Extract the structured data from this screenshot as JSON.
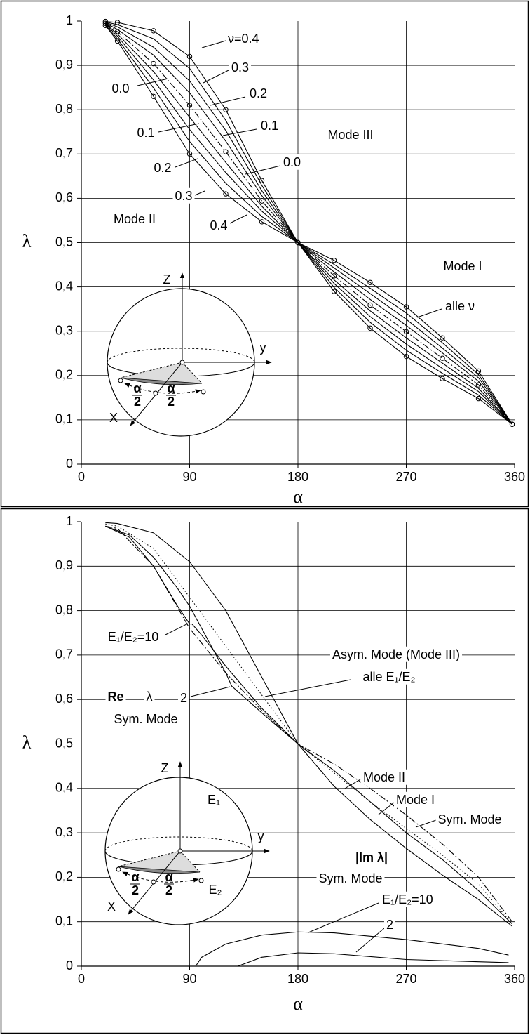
{
  "chart_data": [
    {
      "type": "line",
      "xlabel": "α",
      "ylabel": "λ",
      "xlim": [
        0,
        360
      ],
      "ylim": [
        0,
        1
      ],
      "xticks": [
        0,
        90,
        180,
        270,
        360
      ],
      "yticks": [
        0,
        {
          "value": 0.1,
          "label": "0,1"
        },
        {
          "value": 0.2,
          "label": "0,2"
        },
        {
          "value": 0.3,
          "label": "0,3"
        },
        {
          "value": 0.4,
          "label": "0,4"
        },
        {
          "value": 0.5,
          "label": "0,5"
        },
        {
          "value": 0.6,
          "label": "0,6"
        },
        {
          "value": 0.7,
          "label": "0,7"
        },
        {
          "value": 0.8,
          "label": "0,8"
        },
        {
          "value": 0.9,
          "label": "0,9"
        },
        1
      ],
      "grid": true,
      "x": [
        20,
        30,
        60,
        90,
        120,
        150,
        180,
        210,
        240,
        270,
        300,
        330,
        358
      ],
      "series": [
        {
          "name": "ν=0.4",
          "color": "#000000",
          "style": "solid",
          "marker": "circle",
          "values": [
            0.999,
            0.997,
            0.978,
            0.92,
            0.8,
            0.64,
            0.5,
            0.46,
            0.41,
            0.355,
            0.285,
            0.21,
            0.09
          ]
        },
        {
          "name": "0.3",
          "color": "#000000",
          "style": "solid",
          "values": [
            0.998,
            0.992,
            0.96,
            0.893,
            0.776,
            0.629,
            0.5,
            0.451,
            0.397,
            0.341,
            0.274,
            0.202,
            0.09
          ]
        },
        {
          "name": "0.2",
          "color": "#000000",
          "style": "solid",
          "values": [
            0.997,
            0.987,
            0.941,
            0.865,
            0.753,
            0.617,
            0.5,
            0.443,
            0.385,
            0.327,
            0.262,
            0.195,
            0.09
          ]
        },
        {
          "name": "0.1",
          "color": "#000000",
          "style": "solid",
          "values": [
            0.996,
            0.981,
            0.923,
            0.838,
            0.729,
            0.606,
            0.5,
            0.434,
            0.372,
            0.313,
            0.251,
            0.187,
            0.09
          ]
        },
        {
          "name": "0.0",
          "color": "#000000",
          "style": "dashdot",
          "marker": "circle",
          "values": [
            0.995,
            0.976,
            0.904,
            0.81,
            0.705,
            0.594,
            0.5,
            0.425,
            0.359,
            0.299,
            0.239,
            0.179,
            0.09
          ]
        },
        {
          "name": "0.1",
          "color": "#000000",
          "style": "solid",
          "values": [
            0.994,
            0.971,
            0.886,
            0.783,
            0.681,
            0.582,
            0.5,
            0.416,
            0.346,
            0.285,
            0.228,
            0.171,
            0.09
          ]
        },
        {
          "name": "0.2",
          "color": "#000000",
          "style": "solid",
          "values": [
            0.993,
            0.966,
            0.867,
            0.755,
            0.658,
            0.571,
            0.5,
            0.408,
            0.333,
            0.271,
            0.216,
            0.164,
            0.09
          ]
        },
        {
          "name": "0.3",
          "color": "#000000",
          "style": "solid",
          "values": [
            0.991,
            0.96,
            0.849,
            0.728,
            0.634,
            0.559,
            0.5,
            0.399,
            0.32,
            0.257,
            0.205,
            0.156,
            0.09
          ]
        },
        {
          "name": "0.4",
          "color": "#000000",
          "style": "solid",
          "marker": "circle",
          "values": [
            0.99,
            0.955,
            0.83,
            0.7,
            0.61,
            0.547,
            0.5,
            0.39,
            0.307,
            0.243,
            0.193,
            0.148,
            0.09
          ]
        }
      ],
      "annotations": [
        "0.0",
        "Mode III",
        "Mode II",
        "Mode I",
        "alle ν"
      ],
      "inset": {
        "labels": [
          "Z",
          "y",
          "X",
          "α",
          "2"
        ]
      }
    },
    {
      "type": "line",
      "xlabel": "α",
      "ylabel": "λ",
      "xlim": [
        0,
        360
      ],
      "ylim": [
        0,
        1
      ],
      "xticks": [
        0,
        90,
        180,
        270,
        360
      ],
      "yticks": [
        0,
        {
          "value": 0.1,
          "label": "0,1"
        },
        {
          "value": 0.2,
          "label": "0,2"
        },
        {
          "value": 0.3,
          "label": "0,3"
        },
        {
          "value": 0.4,
          "label": "0,4"
        },
        {
          "value": 0.5,
          "label": "0,5"
        },
        {
          "value": 0.6,
          "label": "0,6"
        },
        {
          "value": 0.7,
          "label": "0,7"
        },
        {
          "value": 0.8,
          "label": "0,8"
        },
        {
          "value": 0.9,
          "label": "0,9"
        },
        1
      ],
      "grid": true,
      "series": [
        {
          "name": "Asym. Mode (Mode III)",
          "color": "#000000",
          "style": "solid",
          "x": [
            20,
            30,
            60,
            90,
            120,
            150,
            180,
            210,
            240,
            270,
            300,
            330,
            358
          ],
          "values": [
            0.998,
            0.996,
            0.975,
            0.91,
            0.8,
            0.65,
            0.5,
            0.405,
            0.33,
            0.265,
            0.205,
            0.15,
            0.09
          ]
        },
        {
          "name": "alle E₁/E₂",
          "color": "#000000",
          "style": "dotted",
          "x": [
            20,
            30,
            60,
            90,
            120,
            150,
            180,
            210,
            240,
            270,
            300,
            330,
            358
          ],
          "values": [
            0.995,
            0.99,
            0.94,
            0.83,
            0.72,
            0.61,
            0.5,
            0.435,
            0.37,
            0.31,
            0.25,
            0.185,
            0.095
          ]
        },
        {
          "name": "Mode II",
          "color": "#000000",
          "style": "dashdot",
          "x": [
            20,
            30,
            60,
            90,
            120,
            150,
            180,
            210,
            240,
            270,
            300,
            330,
            358
          ],
          "values": [
            0.99,
            0.985,
            0.9,
            0.76,
            0.66,
            0.575,
            0.5,
            0.455,
            0.4,
            0.34,
            0.275,
            0.2,
            0.1
          ]
        },
        {
          "name": "E₁/E₂=10",
          "color": "#000000",
          "style": "solid",
          "x": [
            20,
            40,
            60,
            80,
            90,
            92,
            100,
            120,
            150,
            180
          ],
          "values": [
            0.99,
            0.965,
            0.9,
            0.81,
            0.77,
            0.77,
            0.745,
            0.675,
            0.58,
            0.5
          ]
        },
        {
          "name": "2",
          "color": "#000000",
          "style": "solid",
          "x": [
            20,
            40,
            60,
            80,
            90,
            100,
            120,
            125,
            150,
            180
          ],
          "values": [
            0.99,
            0.97,
            0.92,
            0.85,
            0.81,
            0.76,
            0.66,
            0.63,
            0.57,
            0.5
          ]
        },
        {
          "name": "Mode I",
          "color": "#000000",
          "style": "solid",
          "x": [
            180,
            210,
            240,
            270,
            300,
            330,
            358
          ],
          "values": [
            0.5,
            0.44,
            0.37,
            0.3,
            0.24,
            0.17,
            0.095
          ]
        },
        {
          "name": "E₁/E₂=10",
          "color": "#000000",
          "style": "solid",
          "x": [
            95,
            100,
            120,
            150,
            180,
            210,
            270,
            330,
            355
          ],
          "values": [
            0.0,
            0.02,
            0.05,
            0.07,
            0.077,
            0.075,
            0.06,
            0.04,
            0.025
          ]
        },
        {
          "name": "2",
          "color": "#000000",
          "style": "solid",
          "x": [
            130,
            150,
            180,
            210,
            270,
            330,
            355
          ],
          "values": [
            0.0,
            0.02,
            0.03,
            0.028,
            0.015,
            0.01,
            0.008
          ]
        }
      ],
      "annotations": [
        "Re",
        "λ",
        "Sym. Mode",
        "Sym. Mode",
        "|Im λ|",
        "Sym. Mode"
      ],
      "inset": {
        "labels": [
          "Z",
          "y",
          "X",
          "α",
          "2",
          "E₁",
          "E₂"
        ]
      }
    }
  ]
}
